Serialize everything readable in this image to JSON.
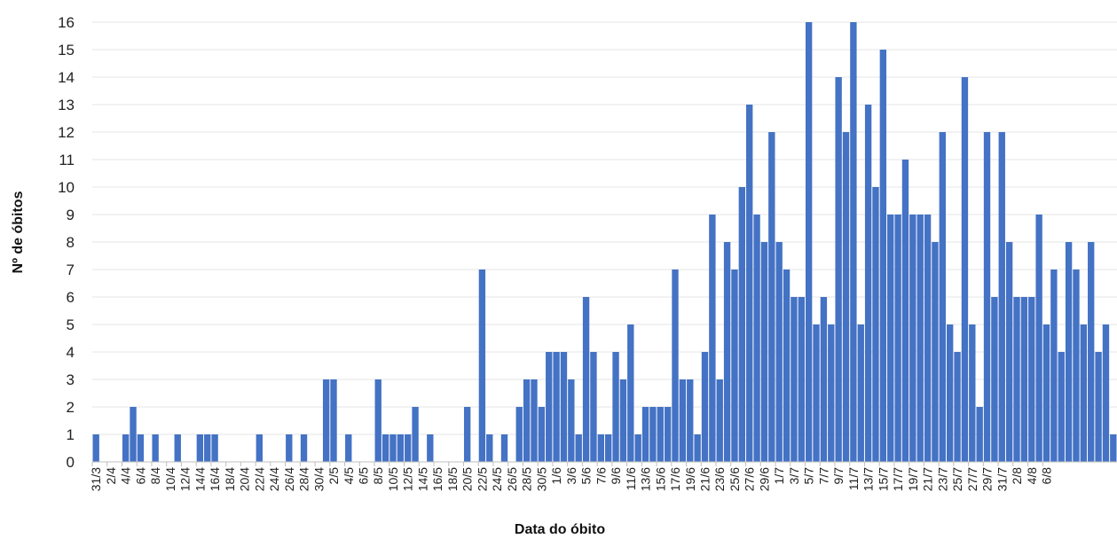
{
  "chart_data": {
    "type": "bar",
    "title": "",
    "xlabel": "Data do óbito",
    "ylabel": "Nº de óbitos",
    "ylim": [
      0,
      16
    ],
    "yticks": [
      0,
      1,
      2,
      3,
      4,
      5,
      6,
      7,
      8,
      9,
      10,
      11,
      12,
      13,
      14,
      15,
      16
    ],
    "grid": true,
    "start_date": "2020-03-31",
    "tick_labels": [
      "31/3",
      "2/4",
      "4/4",
      "6/4",
      "8/4",
      "10/4",
      "12/4",
      "14/4",
      "16/4",
      "18/4",
      "20/4",
      "22/4",
      "24/4",
      "26/4",
      "28/4",
      "30/4",
      "2/5",
      "4/5",
      "6/5",
      "8/5",
      "10/5",
      "12/5",
      "14/5",
      "16/5",
      "18/5",
      "20/5",
      "22/5",
      "24/5",
      "26/5",
      "28/5",
      "30/5",
      "1/6",
      "3/6",
      "5/6",
      "7/6",
      "9/6",
      "11/6",
      "13/6",
      "15/6",
      "17/6",
      "19/6",
      "21/6",
      "23/6",
      "25/6",
      "27/6",
      "29/6",
      "1/7",
      "3/7",
      "5/7",
      "7/7",
      "9/7",
      "11/7",
      "13/7",
      "15/7",
      "17/7",
      "19/7",
      "21/7",
      "23/7",
      "25/7",
      "27/7",
      "29/7",
      "31/7",
      "2/8",
      "4/8",
      "6/8"
    ],
    "values": [
      1,
      0,
      0,
      0,
      1,
      2,
      1,
      0,
      1,
      0,
      0,
      1,
      0,
      0,
      1,
      1,
      1,
      0,
      0,
      0,
      0,
      0,
      1,
      0,
      0,
      0,
      1,
      0,
      1,
      0,
      0,
      3,
      3,
      0,
      1,
      0,
      0,
      0,
      3,
      1,
      1,
      1,
      1,
      2,
      0,
      1,
      0,
      0,
      0,
      0,
      2,
      0,
      7,
      1,
      0,
      1,
      0,
      2,
      3,
      3,
      2,
      4,
      4,
      4,
      3,
      1,
      6,
      4,
      1,
      1,
      4,
      3,
      5,
      1,
      2,
      2,
      2,
      2,
      7,
      3,
      3,
      1,
      4,
      9,
      3,
      8,
      7,
      10,
      13,
      9,
      8,
      12,
      8,
      7,
      6,
      6,
      16,
      5,
      6,
      5,
      14,
      12,
      16,
      5,
      13,
      10,
      15,
      9,
      9,
      11,
      9,
      9,
      9,
      8,
      12,
      5,
      4,
      14,
      5,
      2,
      12,
      6,
      12,
      8,
      6,
      6,
      6,
      9,
      5,
      7,
      4,
      8,
      7,
      5,
      8,
      4,
      5,
      1
    ],
    "bar_color": "#4472c4"
  }
}
